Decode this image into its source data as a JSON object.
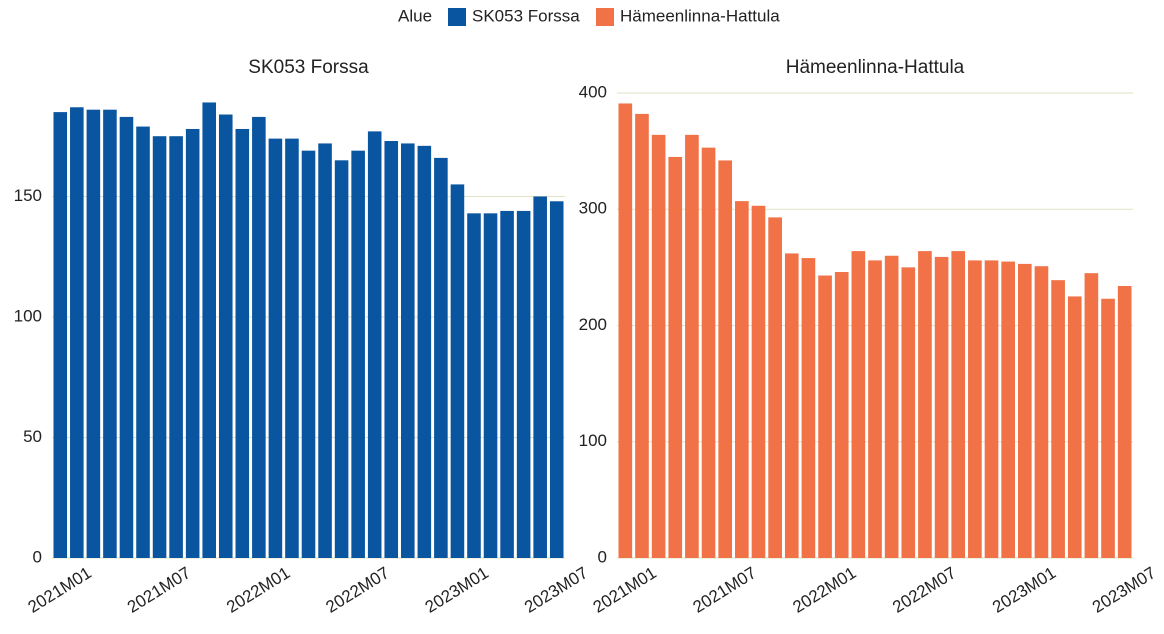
{
  "legend_title": "Alue",
  "chart_data": [
    {
      "type": "bar",
      "title": "SK053 Forssa",
      "categories": [
        "2021M01",
        null,
        null,
        null,
        null,
        null,
        "2021M07",
        null,
        null,
        null,
        null,
        null,
        "2022M01",
        null,
        null,
        null,
        null,
        null,
        "2022M07",
        null,
        null,
        null,
        null,
        null,
        "2023M01",
        null,
        null,
        null,
        null,
        null,
        "2023M07"
      ],
      "series": [
        {
          "name": "SK053 Forssa",
          "color": "#0a559f",
          "values": [
            185,
            187,
            186,
            186,
            183,
            179,
            175,
            175,
            178,
            189,
            184,
            178,
            183,
            174,
            174,
            169,
            172,
            165,
            169,
            177,
            173,
            172,
            171,
            166,
            155,
            143,
            143,
            144,
            144,
            150,
            148
          ]
        }
      ],
      "ylim": [
        0,
        195
      ],
      "yticks": [
        0,
        50,
        100,
        150
      ],
      "grid": true
    },
    {
      "type": "bar",
      "title": "Hämeenlinna-Hattula",
      "categories": [
        "2021M01",
        null,
        null,
        null,
        null,
        null,
        "2021M07",
        null,
        null,
        null,
        null,
        null,
        "2022M01",
        null,
        null,
        null,
        null,
        null,
        "2022M07",
        null,
        null,
        null,
        null,
        null,
        "2023M01",
        null,
        null,
        null,
        null,
        null,
        "2023M07"
      ],
      "series": [
        {
          "name": "Hämeenlinna-Hattula",
          "color": "#f07246",
          "values": [
            391,
            382,
            364,
            345,
            364,
            353,
            342,
            307,
            303,
            293,
            262,
            258,
            243,
            246,
            264,
            256,
            260,
            250,
            264,
            259,
            264,
            256,
            256,
            255,
            253,
            251,
            239,
            225,
            245,
            223,
            234
          ]
        }
      ],
      "ylim": [
        0,
        400
      ],
      "yticks": [
        0,
        100,
        200,
        300,
        400
      ],
      "grid": true
    }
  ]
}
